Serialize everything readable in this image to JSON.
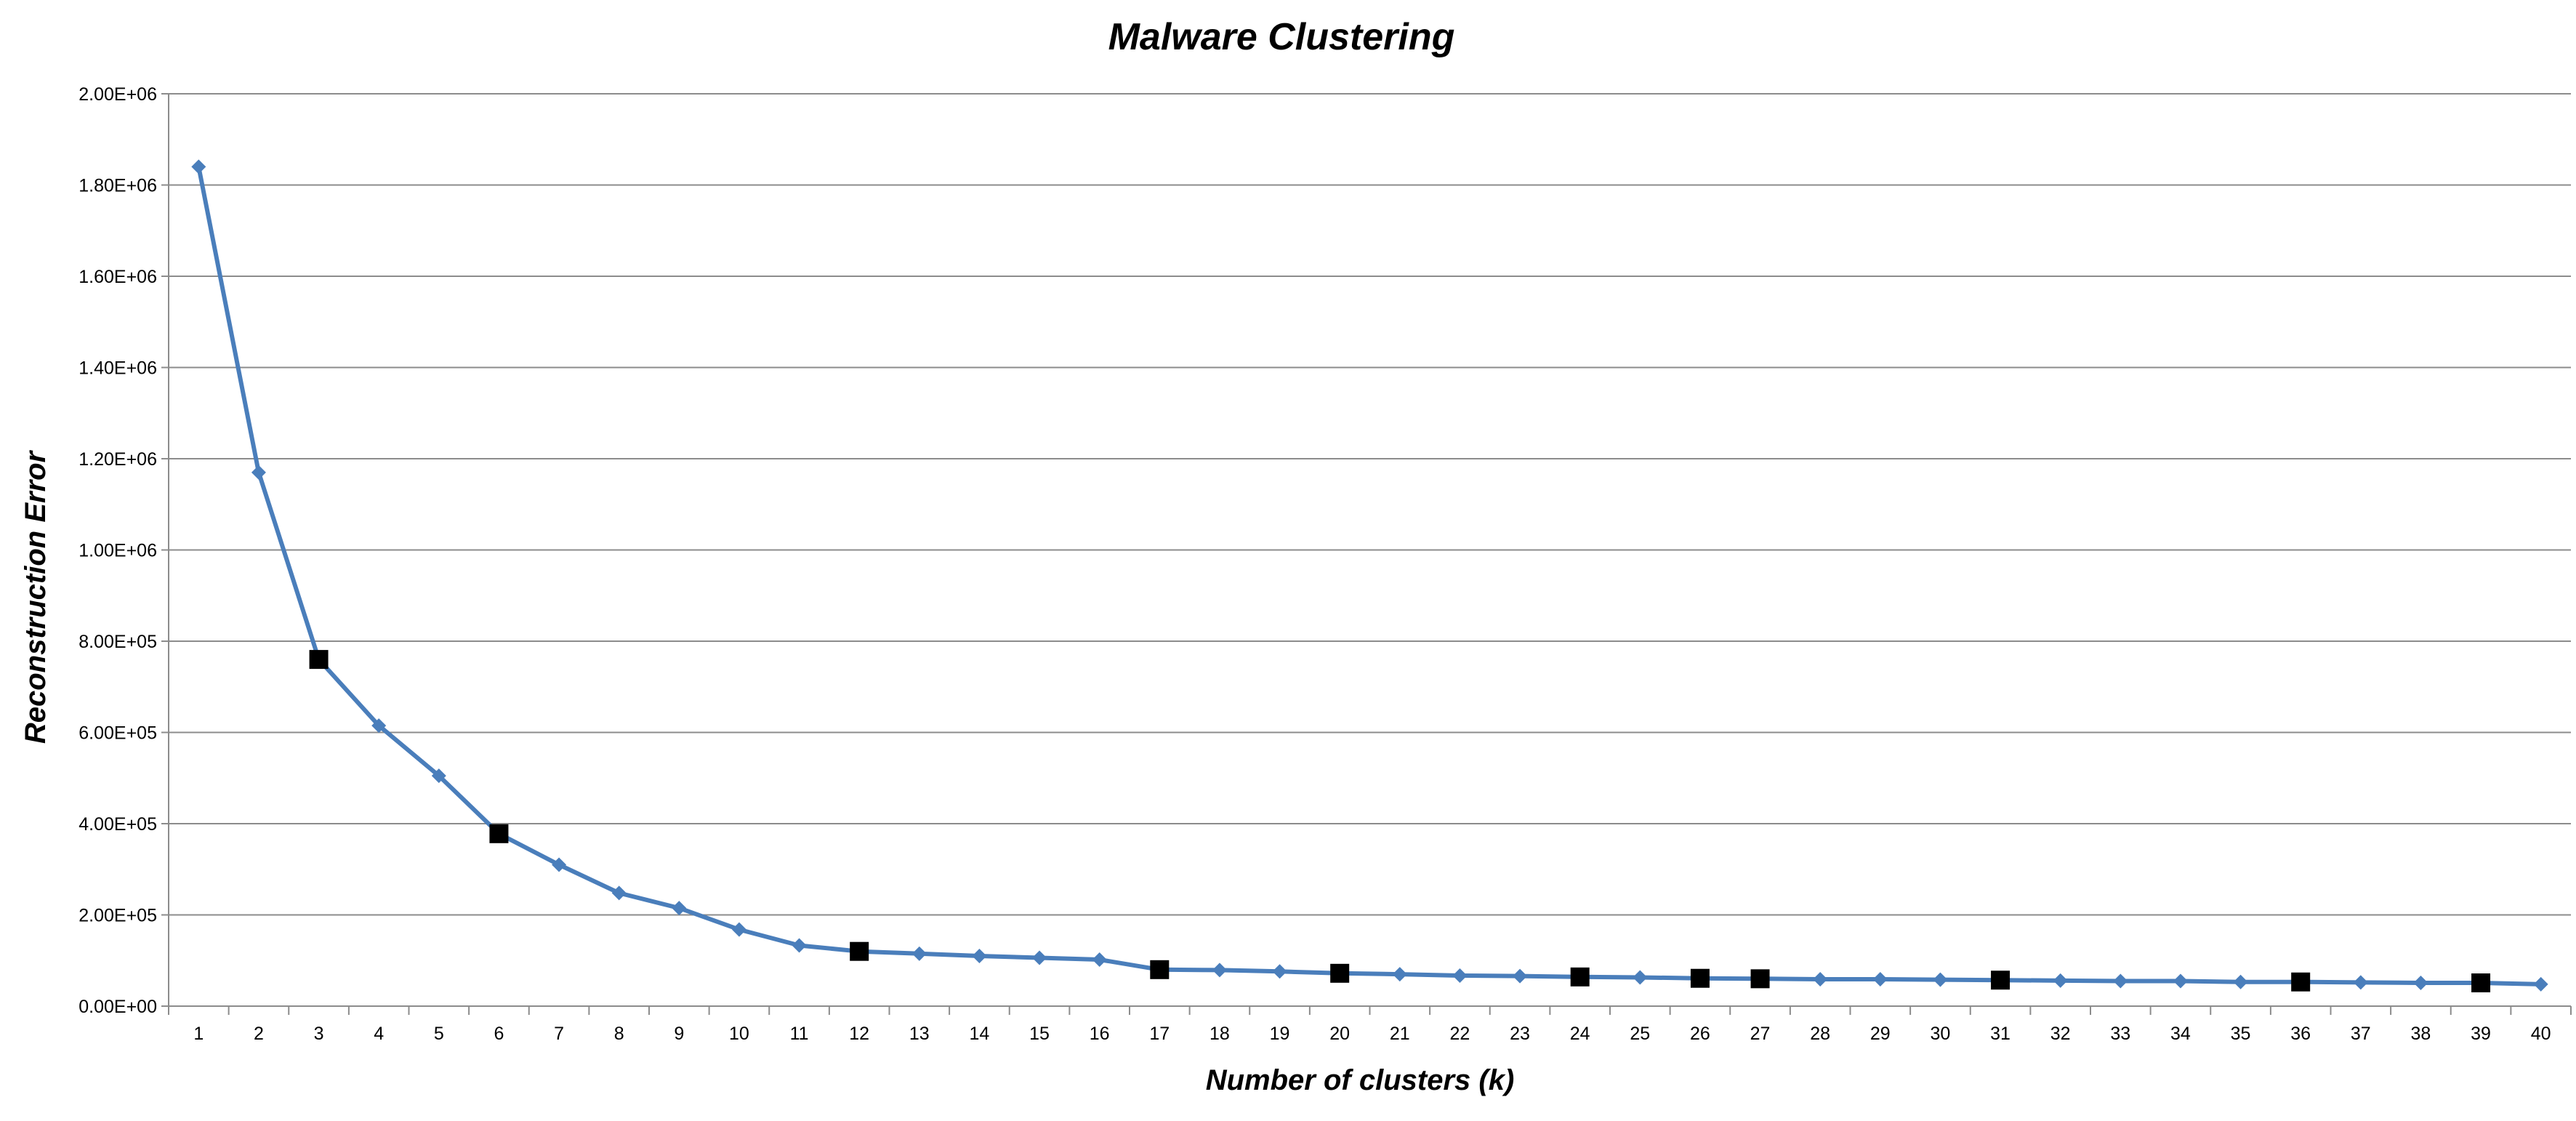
{
  "chart_data": {
    "type": "line",
    "title": "Malware Clustering",
    "xlabel": "Number of clusters  (k)",
    "ylabel": "Reconstruction Error",
    "ylim": [
      0,
      2000000
    ],
    "yticks": [
      "0.00E+00",
      "2.00E+05",
      "4.00E+05",
      "6.00E+05",
      "8.00E+05",
      "1.00E+06",
      "1.20E+06",
      "1.40E+06",
      "1.60E+06",
      "1.80E+06",
      "2.00E+06"
    ],
    "y_tick_values": [
      0,
      200000,
      400000,
      600000,
      800000,
      1000000,
      1200000,
      1400000,
      1600000,
      1800000,
      2000000
    ],
    "grid": true,
    "categories": [
      "1",
      "2",
      "3",
      "4",
      "5",
      "6",
      "7",
      "8",
      "9",
      "10",
      "11",
      "12",
      "13",
      "14",
      "15",
      "16",
      "17",
      "18",
      "19",
      "20",
      "21",
      "22",
      "23",
      "24",
      "25",
      "26",
      "27",
      "28",
      "29",
      "30",
      "31",
      "32",
      "33",
      "34",
      "35",
      "36",
      "37",
      "38",
      "39",
      "40"
    ],
    "series": [
      {
        "values": [
          1840000,
          1170000,
          760000,
          615000,
          505000,
          378000,
          310000,
          248000,
          215000,
          168000,
          133000,
          120000,
          115000,
          110000,
          106000,
          102000,
          80000,
          79000,
          76000,
          72000,
          70000,
          67000,
          66000,
          64000,
          63000,
          61000,
          60000,
          59000,
          59000,
          58000,
          57000,
          56000,
          55000,
          55000,
          53000,
          53000,
          52000,
          51000,
          51000,
          48000
        ],
        "color": "#4a7ebb",
        "marker": "diamond"
      }
    ],
    "highlighted_points": [
      "3",
      "6",
      "12",
      "17",
      "20",
      "24",
      "26",
      "27",
      "31",
      "36",
      "39"
    ],
    "highlight_color": "#000000",
    "highlight_marker": "square"
  }
}
